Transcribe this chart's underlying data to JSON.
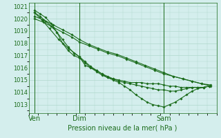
{
  "title": "",
  "xlabel": "Pression niveau de la mer( hPa )",
  "ylabel": "",
  "ylim": [
    1012.3,
    1021.3
  ],
  "xlim": [
    0,
    100
  ],
  "yticks": [
    1013,
    1014,
    1015,
    1016,
    1017,
    1018,
    1019,
    1020,
    1021
  ],
  "xtick_positions": [
    3,
    27,
    72
  ],
  "xtick_labels": [
    "Ven",
    "Dim",
    "Sam"
  ],
  "vline_positions": [
    3,
    27,
    72
  ],
  "bg_color": "#d4eeed",
  "grid_color": "#b0d8cc",
  "line_color": "#1a6b1a",
  "marker": "D",
  "marker_size": 1.8,
  "line_width": 0.8,
  "series": [
    {
      "x": [
        3,
        8,
        13,
        18,
        23,
        27,
        32,
        37,
        42,
        47,
        52,
        57,
        62,
        67,
        72,
        77,
        82,
        87,
        92,
        97
      ],
      "y": [
        1020.0,
        1019.7,
        1019.3,
        1018.9,
        1018.5,
        1018.1,
        1017.8,
        1017.5,
        1017.2,
        1017.0,
        1016.7,
        1016.4,
        1016.1,
        1015.8,
        1015.5,
        1015.3,
        1015.1,
        1014.9,
        1014.7,
        1014.5
      ]
    },
    {
      "x": [
        3,
        8,
        13,
        18,
        23,
        27,
        32,
        37,
        42,
        47,
        52,
        57,
        62,
        67,
        72,
        77,
        82,
        87,
        92,
        97
      ],
      "y": [
        1020.2,
        1019.9,
        1019.5,
        1019.1,
        1018.7,
        1018.3,
        1017.9,
        1017.6,
        1017.3,
        1017.1,
        1016.8,
        1016.5,
        1016.2,
        1015.9,
        1015.6,
        1015.3,
        1015.1,
        1014.9,
        1014.7,
        1014.6
      ]
    },
    {
      "x": [
        3,
        6,
        9,
        12,
        15,
        18,
        21,
        24,
        27,
        30,
        33,
        36,
        39,
        42,
        45,
        48,
        51,
        54,
        57,
        60,
        63,
        66,
        69,
        72,
        75,
        78,
        81,
        84,
        87,
        90,
        93,
        96
      ],
      "y": [
        1020.5,
        1020.2,
        1019.8,
        1019.4,
        1018.9,
        1018.3,
        1017.7,
        1017.2,
        1016.9,
        1016.5,
        1016.1,
        1015.8,
        1015.5,
        1015.3,
        1015.1,
        1015.0,
        1014.9,
        1014.8,
        1014.8,
        1014.8,
        1014.7,
        1014.7,
        1014.7,
        1014.6,
        1014.5,
        1014.5,
        1014.4,
        1014.4,
        1014.4,
        1014.4,
        1014.4,
        1014.5
      ]
    },
    {
      "x": [
        3,
        7,
        11,
        16,
        21,
        27,
        30,
        33,
        36,
        39,
        42,
        45,
        48,
        51,
        54,
        57,
        60,
        63,
        66,
        69,
        72,
        75,
        78,
        81,
        84,
        87,
        90,
        93,
        96
      ],
      "y": [
        1020.5,
        1019.9,
        1019.2,
        1018.3,
        1017.6,
        1016.9,
        1016.2,
        1016.0,
        1015.8,
        1015.5,
        1015.2,
        1015.1,
        1014.9,
        1014.8,
        1014.7,
        1014.6,
        1014.5,
        1014.4,
        1014.3,
        1014.2,
        1014.2,
        1014.1,
        1014.1,
        1014.2,
        1014.3,
        1014.4,
        1014.4,
        1014.4,
        1014.5
      ]
    },
    {
      "x": [
        3,
        6,
        9,
        12,
        15,
        18,
        21,
        24,
        27,
        30,
        33,
        36,
        39,
        42,
        45,
        48,
        51,
        54,
        57,
        60,
        63,
        66,
        69,
        72,
        75,
        78,
        81,
        84,
        87,
        90,
        93,
        96
      ],
      "y": [
        1020.7,
        1020.4,
        1020.1,
        1019.6,
        1018.9,
        1018.0,
        1017.4,
        1017.0,
        1016.8,
        1016.4,
        1016.0,
        1015.7,
        1015.4,
        1015.2,
        1015.0,
        1014.8,
        1014.5,
        1014.2,
        1013.8,
        1013.5,
        1013.2,
        1013.0,
        1012.9,
        1012.8,
        1013.0,
        1013.2,
        1013.5,
        1013.8,
        1014.1,
        1014.3,
        1014.4,
        1014.5
      ]
    }
  ]
}
